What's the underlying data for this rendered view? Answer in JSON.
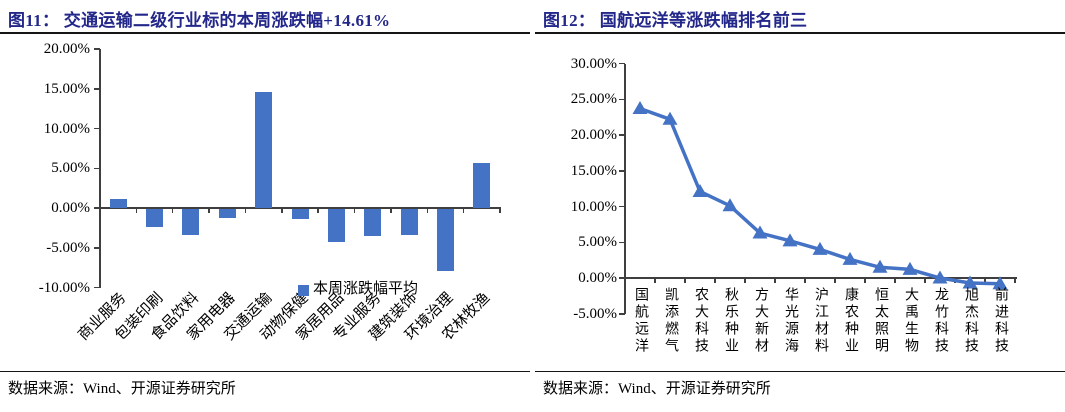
{
  "colors": {
    "accent_blue": "#4472C4",
    "title_navy": "#23278A",
    "axis_gray": "#3f3f3f",
    "rule_black": "#151515"
  },
  "fig11": {
    "title": "图11： 交通运输二级行业标的本周涨跌幅+14.61%",
    "source": "数据来源：Wind、开源证券研究所",
    "legend": "本周涨跌幅平均"
  },
  "fig12": {
    "title": "图12： 国航远洋等涨跌幅排名前三",
    "source": "数据来源：Wind、开源证券研究所"
  },
  "chart_data": [
    {
      "type": "bar",
      "title": "交通运输二级行业标的本周涨跌幅+14.61%",
      "series_name": "本周涨跌幅平均",
      "categories": [
        "商业服务",
        "包装印刷",
        "食品饮料",
        "家用电器",
        "交通运输",
        "动物保健",
        "家居用品",
        "专业服务",
        "建筑装饰",
        "环境治理",
        "农林牧渔"
      ],
      "values": [
        1.1,
        -2.3,
        -3.3,
        -1.1,
        14.61,
        -1.2,
        -4.1,
        -3.4,
        -3.3,
        -7.8,
        5.6
      ],
      "unit": "%",
      "ylim": [
        -10,
        20
      ],
      "ytick_step": 5,
      "ytick_labels": [
        "20.00%",
        "15.00%",
        "10.00%",
        "5.00%",
        "0.00%",
        "-5.00%",
        "-10.00%"
      ],
      "bar_color": "#4472C4",
      "grid": false,
      "legend_position": "inside-bottom-right"
    },
    {
      "type": "line",
      "title": "国航远洋等涨跌幅排名前三",
      "categories": [
        "国航远洋",
        "凯添燃气",
        "农大科技",
        "秋乐种业",
        "方大新材",
        "华光源海",
        "沪江材料",
        "康农种业",
        "恒太照明",
        "大禹生物",
        "龙竹科技",
        "旭杰科技",
        "前进科技"
      ],
      "values": [
        23.7,
        22.2,
        12.1,
        10.1,
        6.3,
        5.2,
        4.0,
        2.6,
        1.5,
        1.2,
        0.0,
        -0.7,
        -0.8
      ],
      "unit": "%",
      "marker": "triangle-up",
      "line_color": "#4472C4",
      "ylim": [
        -5,
        30
      ],
      "ytick_step": 5,
      "ytick_labels": [
        "30.00%",
        "25.00%",
        "20.00%",
        "15.00%",
        "10.00%",
        "5.00%",
        "0.00%",
        "-5.00%"
      ],
      "grid": false,
      "legend_position": "none"
    }
  ]
}
